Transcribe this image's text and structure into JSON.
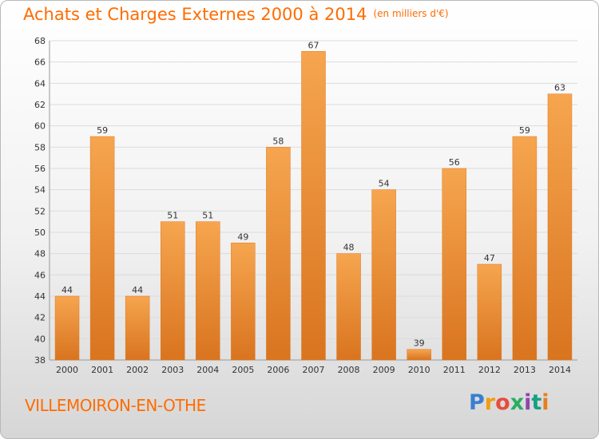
{
  "header": {
    "title": "Achats et Charges Externes 2000 à 2014",
    "unit": "(en milliers d'€)"
  },
  "footer": {
    "place": "VILLEMOIRON-EN-OTHE",
    "logo": "Proxiti"
  },
  "colors": {
    "accent": "#ff6c00",
    "bar_top": "#f6a54f",
    "bar_bottom": "#d9741f"
  },
  "chart_data": {
    "type": "bar",
    "categories": [
      "2000",
      "2001",
      "2002",
      "2003",
      "2004",
      "2005",
      "2006",
      "2007",
      "2008",
      "2009",
      "2010",
      "2011",
      "2012",
      "2013",
      "2014"
    ],
    "values": [
      44,
      59,
      44,
      51,
      51,
      49,
      58,
      67,
      48,
      54,
      39,
      56,
      47,
      59,
      63
    ],
    "title": "Achats et Charges Externes 2000 à 2014",
    "subtitle": "(en milliers d'€)",
    "xlabel": "",
    "ylabel": "",
    "ylim": [
      38,
      68
    ],
    "yticks": [
      38,
      40,
      42,
      44,
      46,
      48,
      50,
      52,
      54,
      56,
      58,
      60,
      62,
      64,
      66,
      68
    ],
    "grid": true,
    "data_labels": true
  }
}
